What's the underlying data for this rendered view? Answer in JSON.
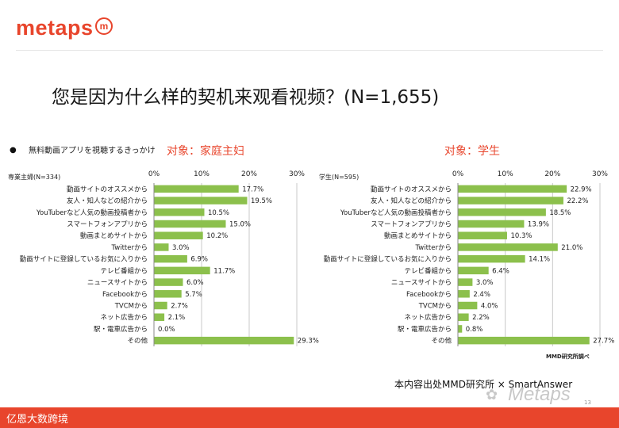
{
  "brand": {
    "name": "metaps",
    "mark": "m"
  },
  "title": "您是因为什么样的契机来观看视频？(N=1,655)",
  "question": "無料動画アプリを視聴するきっかけ",
  "bullet": "●",
  "credit": "本内容出处MMD研究所 × SmartAnswer",
  "source_note": "MMD研究所調べ",
  "watermark": "Metaps",
  "footer": "亿恩大数跨境",
  "page_number": "13",
  "colors": {
    "bar": "#8cc04c",
    "accent": "#e8452c",
    "grid": "#c8c8c8"
  },
  "chart_data": [
    {
      "type": "bar",
      "orientation": "horizontal",
      "target": "对象：家庭主妇",
      "panel_label": "専業主婦(N=334)",
      "xlim": [
        0,
        30
      ],
      "ticks": [
        "0%",
        "10%",
        "20%",
        "30%"
      ],
      "grid": true,
      "categories": [
        "動画サイトのオススメから",
        "友人・知人などの紹介から",
        "YouTuberなど人気の動画投稿者から",
        "スマートフォンアプリから",
        "動画まとめサイトから",
        "Twitterから",
        "動画サイトに登録しているお気に入りから",
        "テレビ番組から",
        "ニュースサイトから",
        "Facebookから",
        "TVCMから",
        "ネット広告から",
        "駅・電車広告から",
        "その他"
      ],
      "values": [
        17.7,
        19.5,
        10.5,
        15.0,
        10.2,
        3.0,
        6.9,
        11.7,
        6.0,
        5.7,
        2.7,
        2.1,
        0.0,
        29.3
      ],
      "labels": [
        "17.7%",
        "19.5%",
        "10.5%",
        "15.0%",
        "10.2%",
        "3.0%",
        "6.9%",
        "11.7%",
        "6.0%",
        "5.7%",
        "2.7%",
        "2.1%",
        "0.0%",
        "29.3%"
      ]
    },
    {
      "type": "bar",
      "orientation": "horizontal",
      "target": "对象：学生",
      "panel_label": "学生(N=595)",
      "xlim": [
        0,
        30
      ],
      "ticks": [
        "0%",
        "10%",
        "20%",
        "30%"
      ],
      "grid": true,
      "categories": [
        "動画サイトのオススメから",
        "友人・知人などの紹介から",
        "YouTuberなど人気の動画投稿者から",
        "スマートフォンアプリから",
        "動画まとめサイトから",
        "Twitterから",
        "動画サイトに登録しているお気に入りから",
        "テレビ番組から",
        "ニュースサイトから",
        "Facebookから",
        "TVCMから",
        "ネット広告から",
        "駅・電車広告から",
        "その他"
      ],
      "values": [
        22.9,
        22.2,
        18.5,
        13.9,
        10.3,
        21.0,
        14.1,
        6.4,
        3.0,
        2.4,
        4.0,
        2.2,
        0.8,
        27.7
      ],
      "labels": [
        "22.9%",
        "22.2%",
        "18.5%",
        "13.9%",
        "10.3%",
        "21.0%",
        "14.1%",
        "6.4%",
        "3.0%",
        "2.4%",
        "4.0%",
        "2.2%",
        "0.8%",
        "27.7%"
      ]
    }
  ]
}
